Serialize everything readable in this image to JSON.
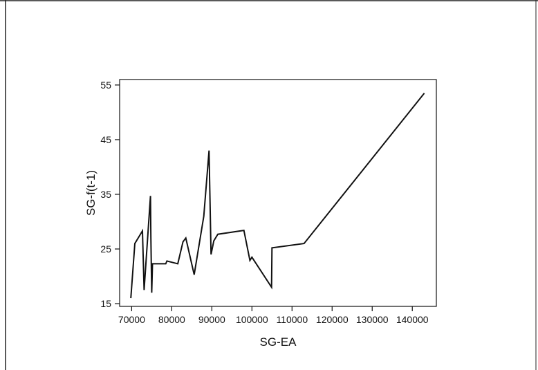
{
  "chart_data": {
    "type": "line",
    "title": "",
    "xlabel": "SG-EA",
    "ylabel": "SG-f(t-1)",
    "xlim": [
      67000,
      146000
    ],
    "ylim": [
      14.5,
      56
    ],
    "xticks": [
      70000,
      80000,
      90000,
      100000,
      110000,
      120000,
      130000,
      140000
    ],
    "xtick_labels": [
      "70000",
      "80000",
      "90000",
      "100000",
      "110000",
      "120000",
      "130000",
      "140000"
    ],
    "yticks": [
      15,
      25,
      35,
      45,
      55
    ],
    "ytick_labels": [
      "15",
      "25",
      "35",
      "45",
      "55"
    ],
    "grid": false,
    "line_color": "#111111",
    "series": [
      {
        "x": [
          69800,
          70800,
          72700,
          73100,
          74700,
          74800,
          75000,
          75200,
          78500,
          78800,
          81500,
          82800,
          83500,
          85600,
          88000,
          89300,
          89800,
          90500,
          91500,
          98000,
          99500,
          100000,
          104900,
          105000,
          113000,
          143000
        ],
        "y": [
          16.0,
          26.0,
          28.3,
          17.5,
          34.7,
          27.0,
          17.0,
          22.3,
          22.3,
          22.8,
          22.3,
          26.3,
          27.0,
          20.3,
          31.0,
          43.0,
          24.0,
          26.5,
          27.7,
          28.4,
          22.9,
          23.5,
          18.0,
          25.2,
          26.0,
          53.5
        ]
      }
    ]
  }
}
